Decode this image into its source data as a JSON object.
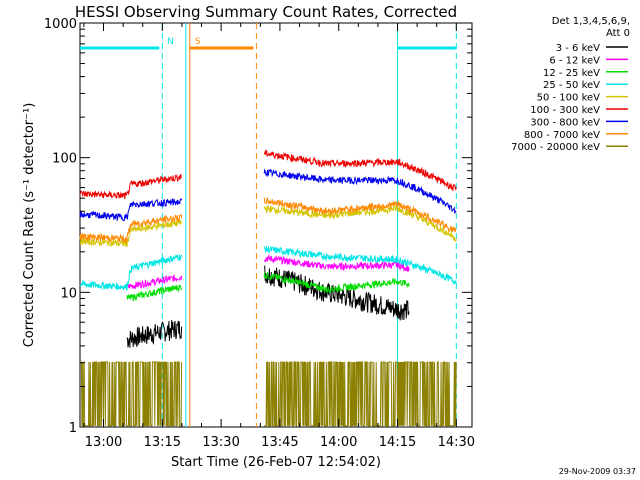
{
  "chart_data": {
    "type": "line",
    "title": "HESSI Observing Summary Count Rates, Corrected",
    "xlabel": "Start Time (26-Feb-07 12:54:02)",
    "ylabel": "Corrected Count Rate (s⁻¹ detector⁻¹)",
    "ylog": true,
    "xlim_minutes": [
      54,
      154
    ],
    "ylim": [
      1,
      1000
    ],
    "x_ticks": [
      {
        "m": 60,
        "label": "13:00"
      },
      {
        "m": 75,
        "label": "13:15"
      },
      {
        "m": 90,
        "label": "13:30"
      },
      {
        "m": 105,
        "label": "13:45"
      },
      {
        "m": 120,
        "label": "14:00"
      },
      {
        "m": 135,
        "label": "14:15"
      },
      {
        "m": 150,
        "label": "14:30"
      }
    ],
    "y_ticks": [
      {
        "v": 1,
        "label": "1"
      },
      {
        "v": 10,
        "label": "10"
      },
      {
        "v": 100,
        "label": "100"
      },
      {
        "v": 1000,
        "label": "1000"
      }
    ],
    "legend_header": [
      "Det 1,3,4,5,6,9,",
      "Att 0"
    ],
    "series": [
      {
        "name": "3 - 6 keV",
        "color": "#000000",
        "seg1": [
          [
            66,
            4.5
          ],
          [
            80,
            5.5
          ]
        ],
        "seg2": [
          [
            101,
            14
          ],
          [
            117,
            10
          ],
          [
            135,
            7.5
          ],
          [
            138,
            7.5
          ]
        ]
      },
      {
        "name": "6 - 12 keV",
        "color": "#ff00ff",
        "seg1": [
          [
            66,
            11
          ],
          [
            80,
            13
          ]
        ],
        "seg2": [
          [
            101,
            18
          ],
          [
            117,
            15.5
          ],
          [
            135,
            16
          ],
          [
            138,
            15
          ]
        ]
      },
      {
        "name": "12 - 25 keV",
        "color": "#00dd00",
        "seg1": [
          [
            66,
            9
          ],
          [
            80,
            11
          ]
        ],
        "seg2": [
          [
            101,
            13.5
          ],
          [
            117,
            10.5
          ],
          [
            135,
            12
          ],
          [
            138,
            11.5
          ]
        ]
      },
      {
        "name": "25 - 50 keV",
        "color": "#00e5e5",
        "seg1": [
          [
            54,
            11.5
          ],
          [
            66,
            11
          ],
          [
            67,
            15
          ],
          [
            80,
            18.5
          ]
        ],
        "seg2": [
          [
            101,
            21
          ],
          [
            117,
            18.5
          ],
          [
            135,
            17.5
          ],
          [
            150,
            12
          ]
        ]
      },
      {
        "name": "50 - 100 keV",
        "color": "#d4c400",
        "seg1": [
          [
            54,
            24
          ],
          [
            66,
            23
          ],
          [
            67,
            29
          ],
          [
            80,
            33
          ]
        ],
        "seg2": [
          [
            101,
            42
          ],
          [
            117,
            37
          ],
          [
            135,
            42
          ],
          [
            150,
            25
          ]
        ]
      },
      {
        "name": "100 - 300 keV",
        "color": "#ee0000",
        "seg1": [
          [
            54,
            54
          ],
          [
            66,
            52
          ],
          [
            67,
            63
          ],
          [
            80,
            72
          ]
        ],
        "seg2": [
          [
            101,
            108
          ],
          [
            117,
            90
          ],
          [
            135,
            93
          ],
          [
            150,
            58
          ]
        ]
      },
      {
        "name": "300 - 800 keV",
        "color": "#0000ee",
        "seg1": [
          [
            54,
            38
          ],
          [
            66,
            36
          ],
          [
            67,
            45
          ],
          [
            80,
            47
          ]
        ],
        "seg2": [
          [
            101,
            78
          ],
          [
            117,
            68
          ],
          [
            135,
            68
          ],
          [
            150,
            40
          ]
        ]
      },
      {
        "name": "800 - 7000 keV",
        "color": "#ff8800",
        "seg1": [
          [
            54,
            26
          ],
          [
            66,
            25
          ],
          [
            67,
            32
          ],
          [
            80,
            36
          ]
        ],
        "seg2": [
          [
            101,
            48
          ],
          [
            117,
            40
          ],
          [
            135,
            45
          ],
          [
            150,
            28
          ]
        ]
      },
      {
        "name": "7000 - 20000 keV",
        "color": "#8b8000",
        "seg1": [
          [
            54,
            1.6
          ],
          [
            80,
            1.6
          ]
        ],
        "seg2": [
          [
            101,
            1.6
          ],
          [
            150,
            1.6
          ]
        ]
      }
    ],
    "annotations": [
      {
        "label": "N",
        "color": "#00e5e5",
        "x": 75,
        "bar_start": 54,
        "bar_end": 75
      },
      {
        "label": "S",
        "color": "#ff8800",
        "x": 82,
        "bar_start": 82,
        "bar_end": 99
      }
    ],
    "timestamp": "29-Nov-2009 03:37"
  }
}
